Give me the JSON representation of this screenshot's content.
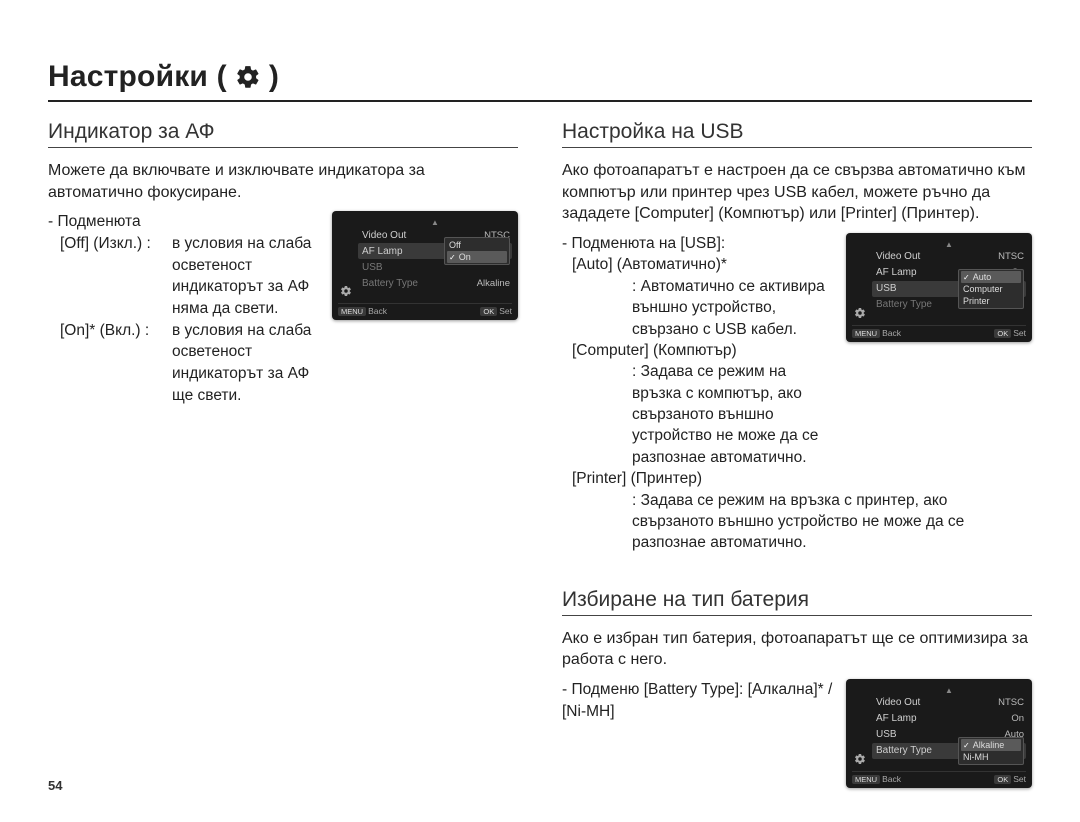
{
  "page": {
    "title": "Настройки (",
    "title_suffix": ")",
    "number": "54"
  },
  "colors": {
    "text": "#222222",
    "heading_rule": "#444444",
    "screen_bg": "#1a1a1a",
    "screen_text": "#bbbbbb",
    "screen_dim": "#777777",
    "dd_hl": "#5a5a5a"
  },
  "left": {
    "heading": "Индикатор за АФ",
    "intro": "Можете да включвате и изключвате индикатора за автоматично фокусиране.",
    "submenu_label": "- Подменюта",
    "items": [
      {
        "label": "[Off] (Изкл.) :",
        "desc": "в условия на слаба осветеност индикаторът за АФ няма да свети."
      },
      {
        "label": "[On]* (Вкл.) :",
        "desc": "в условия на слаба осветеност индикаторът за АФ ще свети."
      }
    ],
    "screen": {
      "rows": [
        {
          "left": "Video Out",
          "right": "NTSC",
          "leftDim": false
        },
        {
          "left": "AF Lamp",
          "right": "",
          "sel": true
        },
        {
          "left": "USB",
          "right": "",
          "leftDim": true
        },
        {
          "left": "Battery Type",
          "right": "Alkaline",
          "leftDim": true
        }
      ],
      "dropdown": {
        "row": 1,
        "items": [
          {
            "t": "Off",
            "hl": false
          },
          {
            "t": "On",
            "hl": true,
            "check": true
          }
        ]
      },
      "footer": {
        "backBtn": "MENU",
        "backText": "Back",
        "okBtn": "OK",
        "okText": "Set"
      }
    }
  },
  "right_usb": {
    "heading": "Настройка на USB",
    "intro": "Ако фотоапаратът е настроен да се свързва автоматично към компютър или принтер чрез USB кабел, можете ръчно да зададете [Computer] (Компютър) или [Printer] (Принтер).",
    "submenu_label": "- Подменюта на [USB]:",
    "items": [
      {
        "label": "[Auto] (Автоматично)*",
        "desc": ": Автоматично се активира външно устройство, свързано с USB кабел."
      },
      {
        "label": "[Computer] (Компютър)",
        "desc": ": Задава се режим на връзка с компютър, ако свързаното външно устройство не може да се разпознае автоматично."
      },
      {
        "label": "[Printer] (Принтер)",
        "desc": ": Задава се режим на връзка с принтер, ако свързаното външно устройство не може да се разпознае автоматично."
      }
    ],
    "screen": {
      "rows": [
        {
          "left": "Video Out",
          "right": "NTSC"
        },
        {
          "left": "AF Lamp",
          "right": "On"
        },
        {
          "left": "USB",
          "right": "",
          "sel": true
        },
        {
          "left": "Battery Type",
          "right": "",
          "leftDim": true
        }
      ],
      "dropdown": {
        "row": 2,
        "items": [
          {
            "t": "Auto",
            "hl": true,
            "check": true
          },
          {
            "t": "Computer"
          },
          {
            "t": "Printer"
          }
        ]
      },
      "footer": {
        "backBtn": "MENU",
        "backText": "Back",
        "okBtn": "OK",
        "okText": "Set"
      }
    }
  },
  "right_battery": {
    "heading": "Избиране на тип батерия",
    "intro": "Ако е избран тип батерия, фотоапаратът ще се оптимизира за работа с него.",
    "body": "- Подменю [Battery Type]: [Алкална]* / [Ni-MH]",
    "screen": {
      "rows": [
        {
          "left": "Video Out",
          "right": "NTSC"
        },
        {
          "left": "AF Lamp",
          "right": "On"
        },
        {
          "left": "USB",
          "right": "Auto"
        },
        {
          "left": "Battery Type",
          "right": "",
          "sel": true
        }
      ],
      "dropdown": {
        "row": 3,
        "items": [
          {
            "t": "Alkaline",
            "hl": true,
            "check": true
          },
          {
            "t": "Ni-MH"
          }
        ]
      },
      "footer": {
        "backBtn": "MENU",
        "backText": "Back",
        "okBtn": "OK",
        "okText": "Set"
      }
    }
  }
}
